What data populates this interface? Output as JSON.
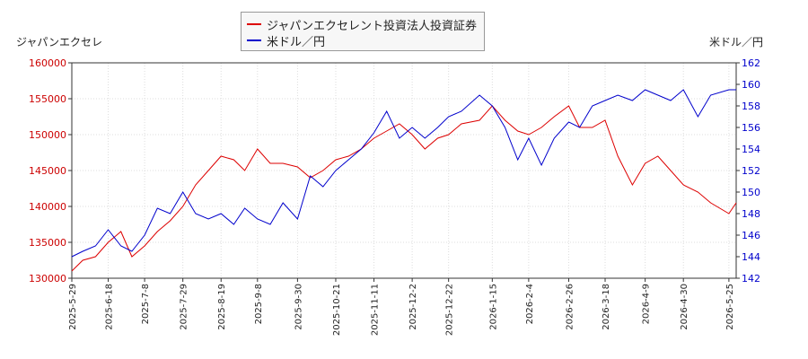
{
  "chart_data": {
    "type": "line",
    "title": "",
    "legend": {
      "placement": "top-center",
      "entries": [
        {
          "label": "ジャパンエクセレント投資法人投資証券",
          "color": "#dd0000"
        },
        {
          "label": "米ドル／円",
          "color": "#0000cc"
        }
      ]
    },
    "y_left": {
      "label": "ジャパンエクセレ",
      "range": [
        130000,
        160000
      ],
      "ticks": [
        130000,
        135000,
        140000,
        145000,
        150000,
        155000,
        160000
      ],
      "tick_color": "#cc0000"
    },
    "y_right": {
      "label": "米ドル／円",
      "range": [
        142,
        162
      ],
      "ticks": [
        142,
        144,
        146,
        148,
        150,
        152,
        154,
        156,
        158,
        160,
        162
      ],
      "tick_color": "#0000cc"
    },
    "x_ticks": [
      "2025-5-29",
      "2025-6-18",
      "2025-7-8",
      "2025-7-29",
      "2025-8-19",
      "2025-9-8",
      "2025-9-30",
      "2025-10-21",
      "2025-11-11",
      "2025-12-2",
      "2025-12-22",
      "2026-1-15",
      "2026-2-4",
      "2026-2-26",
      "2026-3-18",
      "2026-4-9",
      "2026-4-30",
      "2026-5-25"
    ],
    "grid": true,
    "series": [
      {
        "name": "ジャパンエクセレント投資法人投資証券",
        "axis": "left",
        "color": "#dd0000",
        "x": [
          "2025-5-29",
          "2025-6-4",
          "2025-6-11",
          "2025-6-18",
          "2025-6-25",
          "2025-7-1",
          "2025-7-8",
          "2025-7-15",
          "2025-7-22",
          "2025-7-29",
          "2025-8-5",
          "2025-8-12",
          "2025-8-19",
          "2025-8-26",
          "2025-9-1",
          "2025-9-8",
          "2025-9-15",
          "2025-9-22",
          "2025-9-30",
          "2025-10-7",
          "2025-10-14",
          "2025-10-21",
          "2025-10-28",
          "2025-11-4",
          "2025-11-11",
          "2025-11-18",
          "2025-11-25",
          "2025-12-2",
          "2025-12-9",
          "2025-12-16",
          "2025-12-22",
          "2025-12-29",
          "2026-1-8",
          "2026-1-15",
          "2026-1-22",
          "2026-1-29",
          "2026-2-4",
          "2026-2-11",
          "2026-2-18",
          "2026-2-26",
          "2026-3-4",
          "2026-3-11",
          "2026-3-18",
          "2026-3-25",
          "2026-4-2",
          "2026-4-9",
          "2026-4-16",
          "2026-4-23",
          "2026-4-30",
          "2026-5-8",
          "2026-5-15",
          "2026-5-25",
          "2026-5-29"
        ],
        "values": [
          131000,
          132500,
          133000,
          135000,
          136500,
          133000,
          134500,
          136500,
          138000,
          140000,
          143000,
          145000,
          147000,
          146500,
          145000,
          148000,
          146000,
          146000,
          145500,
          144000,
          145000,
          146500,
          147000,
          148000,
          149500,
          150500,
          151500,
          150000,
          148000,
          149500,
          150000,
          151500,
          152000,
          154000,
          152000,
          150500,
          150000,
          151000,
          152500,
          154000,
          151000,
          151000,
          152000,
          147000,
          143000,
          146000,
          147000,
          145000,
          143000,
          142000,
          140500,
          139000,
          140500
        ]
      },
      {
        "name": "米ドル／円",
        "axis": "right",
        "color": "#0000cc",
        "x": [
          "2025-5-29",
          "2025-6-4",
          "2025-6-11",
          "2025-6-18",
          "2025-6-25",
          "2025-7-1",
          "2025-7-8",
          "2025-7-15",
          "2025-7-22",
          "2025-7-29",
          "2025-8-5",
          "2025-8-12",
          "2025-8-19",
          "2025-8-26",
          "2025-9-1",
          "2025-9-8",
          "2025-9-15",
          "2025-9-22",
          "2025-9-30",
          "2025-10-7",
          "2025-10-14",
          "2025-10-21",
          "2025-10-28",
          "2025-11-4",
          "2025-11-11",
          "2025-11-18",
          "2025-11-25",
          "2025-12-2",
          "2025-12-9",
          "2025-12-16",
          "2025-12-22",
          "2025-12-29",
          "2026-1-8",
          "2026-1-15",
          "2026-1-22",
          "2026-1-29",
          "2026-2-4",
          "2026-2-11",
          "2026-2-18",
          "2026-2-26",
          "2026-3-4",
          "2026-3-11",
          "2026-3-18",
          "2026-3-25",
          "2026-4-2",
          "2026-4-9",
          "2026-4-16",
          "2026-4-23",
          "2026-4-30",
          "2026-5-8",
          "2026-5-15",
          "2026-5-25",
          "2026-5-29"
        ],
        "values": [
          144.0,
          144.5,
          145.0,
          146.5,
          145.0,
          144.5,
          146.0,
          148.5,
          148.0,
          150.0,
          148.0,
          147.5,
          148.0,
          147.0,
          148.5,
          147.5,
          147.0,
          149.0,
          147.5,
          151.5,
          150.5,
          152.0,
          153.0,
          154.0,
          155.5,
          157.5,
          155.0,
          156.0,
          155.0,
          156.0,
          157.0,
          157.5,
          159.0,
          158.0,
          156.0,
          153.0,
          155.0,
          152.5,
          155.0,
          156.5,
          156.0,
          158.0,
          158.5,
          159.0,
          158.5,
          159.5,
          159.0,
          158.5,
          159.5,
          157.0,
          159.0,
          159.5,
          159.5
        ]
      }
    ]
  }
}
